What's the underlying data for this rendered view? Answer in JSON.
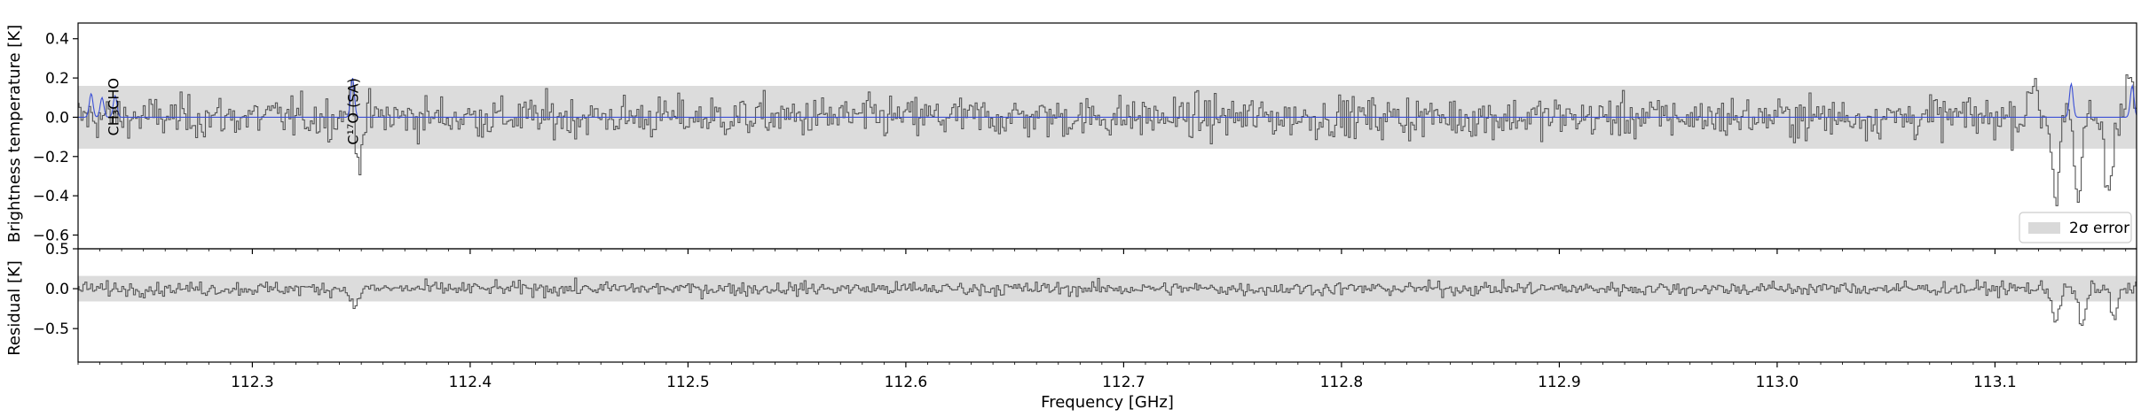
{
  "chart_data": [
    {
      "panel": "main",
      "type": "line",
      "ylabel": "Brightness temperature [K]",
      "xlim": [
        112.22,
        113.165
      ],
      "ylim": [
        -0.67,
        0.48
      ],
      "yticks": [
        0.4,
        0.2,
        0.0,
        -0.2,
        -0.4,
        -0.6
      ],
      "ytick_labels": [
        "0.4",
        "0.2",
        "0.0",
        "−0.2",
        "−0.4",
        "−0.6"
      ],
      "error_band": [
        -0.16,
        0.16
      ],
      "legend": {
        "label": "2σ error",
        "placement": "lower-right",
        "color": "#d9d9d9"
      },
      "annotations": [
        {
          "label": "CH₃CHO",
          "x": 112.236
        },
        {
          "label": "C¹⁷O (SA)",
          "x": 112.346
        }
      ],
      "series": [
        {
          "style": "steps",
          "color": "#555555",
          "noise_sigma": 0.075,
          "features": [
            {
              "x": 112.346,
              "peak": 0.22
            },
            {
              "x": 112.348,
              "peak": -0.3
            },
            {
              "x": 113.128,
              "peak": -0.4
            },
            {
              "x": 113.138,
              "peak": -0.45
            },
            {
              "x": 113.152,
              "peak": -0.38
            },
            {
              "x": 113.118,
              "peak": 0.2
            },
            {
              "x": 113.162,
              "peak": 0.2
            }
          ]
        },
        {
          "style": "line",
          "color": "#3a4fd6",
          "baseline": 0.0,
          "peaks": [
            {
              "x": 112.226,
              "height": 0.12
            },
            {
              "x": 112.231,
              "height": 0.1
            },
            {
              "x": 112.237,
              "height": 0.11
            },
            {
              "x": 112.346,
              "height": 0.2
            },
            {
              "x": 113.135,
              "height": 0.17
            },
            {
              "x": 113.163,
              "height": 0.16
            }
          ]
        }
      ]
    },
    {
      "panel": "residual",
      "type": "line",
      "ylabel": "Residual [K]",
      "xlabel": "Frequency [GHz]",
      "xlim": [
        112.22,
        113.165
      ],
      "ylim": [
        -0.92,
        0.5
      ],
      "yticks": [
        0.5,
        0.0,
        -0.5
      ],
      "ytick_labels": [
        "0.5",
        "0.0",
        "−0.5"
      ],
      "xticks": [
        112.3,
        112.4,
        112.5,
        112.6,
        112.7,
        112.8,
        112.9,
        113.0,
        113.1
      ],
      "xtick_labels": [
        "112.3",
        "112.4",
        "112.5",
        "112.6",
        "112.7",
        "112.8",
        "112.9",
        "113.0",
        "113.1"
      ],
      "error_band": [
        -0.16,
        0.16
      ],
      "series": [
        {
          "style": "steps",
          "color": "#555555",
          "noise_sigma": 0.06,
          "features": [
            {
              "x": 112.347,
              "peak": -0.25
            },
            {
              "x": 113.128,
              "peak": -0.4
            },
            {
              "x": 113.14,
              "peak": -0.5
            },
            {
              "x": 113.155,
              "peak": -0.35
            }
          ]
        }
      ]
    }
  ]
}
